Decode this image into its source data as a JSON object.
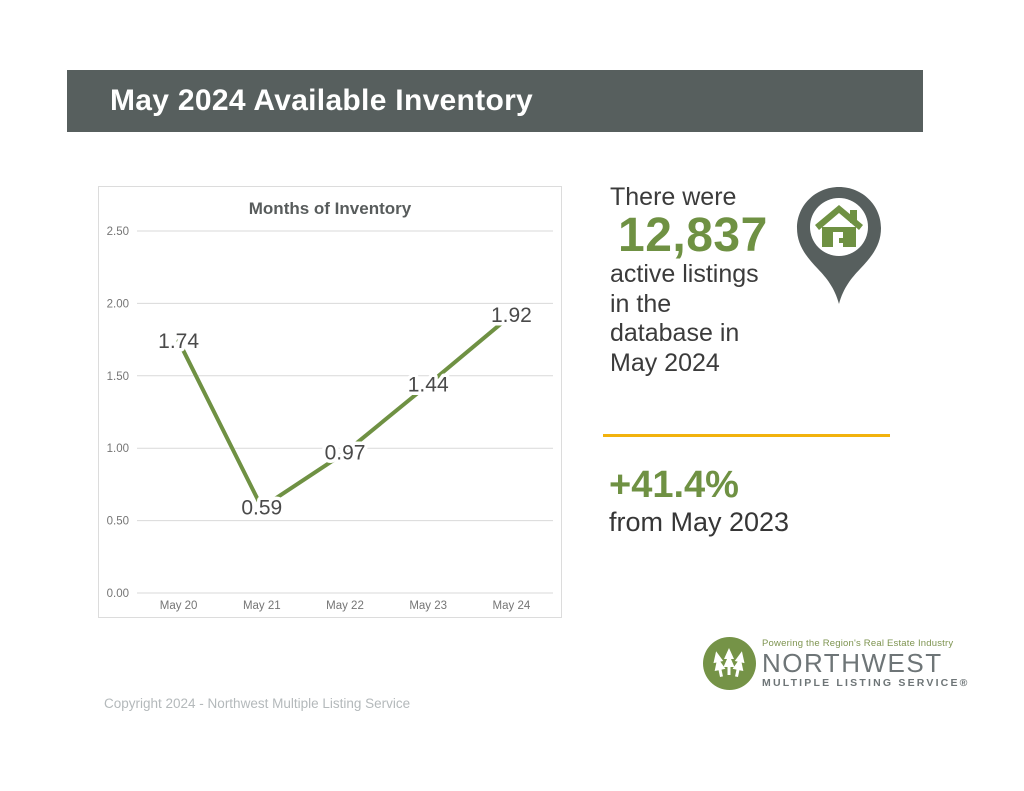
{
  "header": {
    "title": "May 2024 Available Inventory"
  },
  "chart_data": {
    "type": "line",
    "title": "Months of Inventory",
    "categories": [
      "May 20",
      "May 21",
      "May 22",
      "May 23",
      "May 24"
    ],
    "values": [
      1.74,
      0.59,
      0.97,
      1.44,
      1.92
    ],
    "data_labels": [
      "1.74",
      "0.59",
      "0.97",
      "1.44",
      "1.92"
    ],
    "xlabel": "",
    "ylabel": "",
    "ylim": [
      0,
      2.5
    ],
    "yticks": [
      0.0,
      0.5,
      1.0,
      1.5,
      2.0,
      2.5
    ],
    "grid": true,
    "legend": false,
    "line_color": "#6f9143",
    "label_color": "#4a4a4a"
  },
  "stat": {
    "intro": "There were",
    "value": "12,837",
    "lines": [
      "active listings",
      "in the",
      "database in",
      "May 2024"
    ]
  },
  "change": {
    "value": "+41.4%",
    "caption": "from May 2023"
  },
  "logo": {
    "tagline": "Powering the Region's Real Estate Industry",
    "name": "NORTHWEST",
    "subname": "MULTIPLE LISTING SERVICE®"
  },
  "footer": {
    "copyright": "Copyright 2024 - Northwest Multiple Listing Service"
  },
  "icons": {
    "pin": "map-pin-house-icon",
    "logo_mark": "evergreen-trees-circle-icon"
  },
  "colors": {
    "header_bar": "#575f5e",
    "accent_green": "#6f9143",
    "gold_rule": "#f2b20d",
    "dark_text": "#3b3b3b",
    "chart_gray_text": "#757575",
    "gridline": "#d9d9d9",
    "logo_gray": "#6e7577",
    "copyright_gray": "#b4b9bb"
  }
}
